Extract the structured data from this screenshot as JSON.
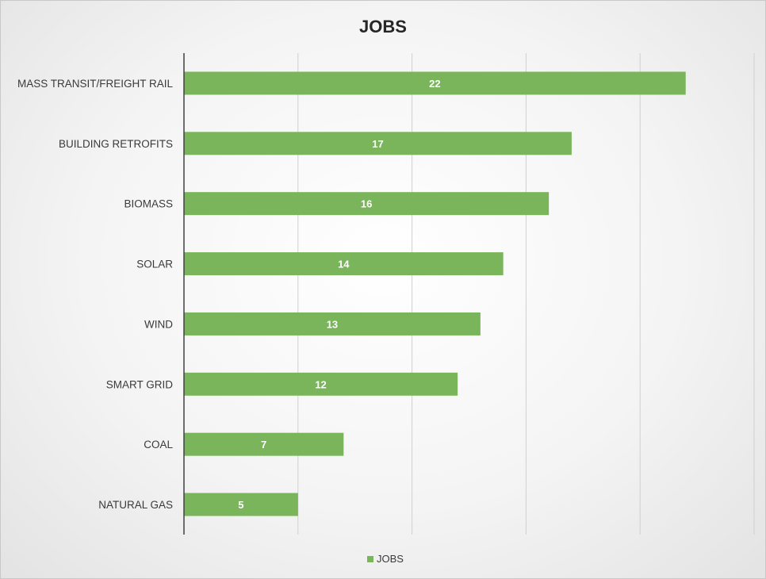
{
  "chart_data": {
    "type": "bar",
    "orientation": "horizontal",
    "title": "JOBS",
    "categories": [
      "MASS TRANSIT/FREIGHT RAIL",
      "BUILDING RETROFITS",
      "BIOMASS",
      "SOLAR",
      "WIND",
      "SMART GRID",
      "COAL",
      "NATURAL GAS"
    ],
    "series": [
      {
        "name": "JOBS",
        "values": [
          22,
          17,
          16,
          14,
          13,
          12,
          7,
          5
        ]
      }
    ],
    "xlim": [
      0,
      25
    ],
    "grid": true,
    "legend": "bottom",
    "colors": {
      "bar": "#7ab55c",
      "grid": "#d0d0d0",
      "axis": "#404040"
    }
  }
}
